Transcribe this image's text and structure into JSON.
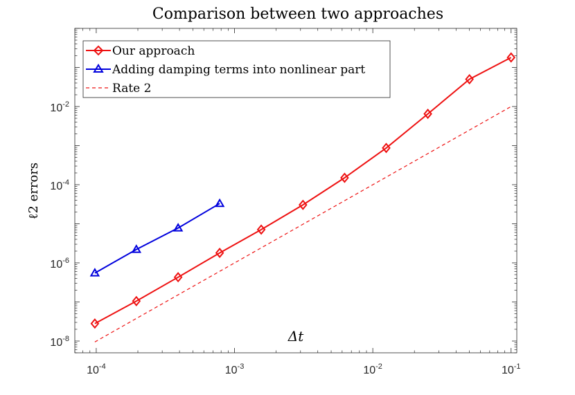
{
  "chart_data": {
    "type": "line",
    "title": "Comparison between two approaches",
    "xlabel": "Δt",
    "ylabel": "ℓ2 errors",
    "xscale": "log",
    "yscale": "log",
    "xlim": [
      7e-05,
      0.11
    ],
    "ylim": [
      5e-09,
      1
    ],
    "grid": false,
    "legend_position": "top-left",
    "x_ticks": [
      {
        "value": 0.0001,
        "base": "10",
        "exp": "-4"
      },
      {
        "value": 0.001,
        "base": "10",
        "exp": "-3"
      },
      {
        "value": 0.01,
        "base": "10",
        "exp": "-2"
      },
      {
        "value": 0.1,
        "base": "10",
        "exp": "-1"
      }
    ],
    "y_ticks": [
      {
        "value": 1e-08,
        "base": "10",
        "exp": "-8"
      },
      {
        "value": 1e-06,
        "base": "10",
        "exp": "-6"
      },
      {
        "value": 0.0001,
        "base": "10",
        "exp": "-4"
      },
      {
        "value": 0.01,
        "base": "10",
        "exp": "-2"
      }
    ],
    "series": [
      {
        "name": "Our approach",
        "color": "#ee1111",
        "marker": "diamond",
        "dash": "solid",
        "x": [
          9.77e-05,
          0.000195,
          0.000391,
          0.000781,
          0.00156,
          0.003125,
          0.00625,
          0.0125,
          0.025,
          0.05,
          0.1
        ],
        "y": [
          2.8e-08,
          1.05e-07,
          4.3e-07,
          1.8e-06,
          7.1e-06,
          3.05e-05,
          0.00015,
          0.00087,
          0.0065,
          0.05,
          0.18
        ]
      },
      {
        "name": "Adding damping terms into nonlinear part",
        "color": "#0000dd",
        "marker": "triangle",
        "dash": "solid",
        "x": [
          9.77e-05,
          0.000195,
          0.000391,
          0.000781
        ],
        "y": [
          5.5e-07,
          2.2e-06,
          7.8e-06,
          3.3e-05
        ]
      },
      {
        "name": "Rate 2",
        "color": "#ee1111",
        "marker": "none",
        "dash": "dashed",
        "x": [
          9.77e-05,
          0.1
        ],
        "y": [
          9.5e-09,
          0.01
        ]
      }
    ]
  }
}
